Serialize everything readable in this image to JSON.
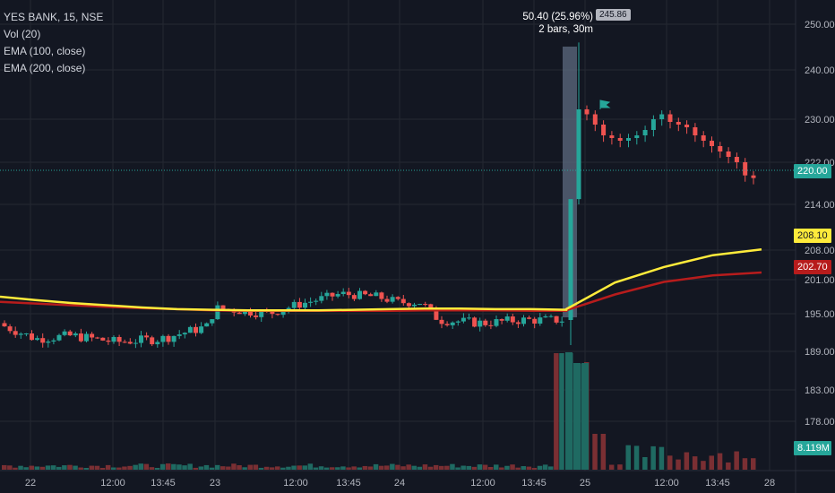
{
  "symbol": "YES BANK, 15, NSE",
  "legend": [
    "Vol (20)",
    "EMA (100, close)",
    "EMA (200, close)"
  ],
  "measure": {
    "change": "50.40 (25.96%)",
    "bars": "2 bars, 30m",
    "price": "245.86"
  },
  "price_labels": {
    "current": "220.00",
    "ema100": "208.10",
    "ema200": "202.70",
    "volume": "8.119M"
  },
  "colors": {
    "bg": "#131722",
    "up": "#26a69a",
    "down": "#ef5350",
    "ema100": "#ffeb3b",
    "ema200": "#b71c1c",
    "grid": "#242832",
    "text": "#b2b5be"
  },
  "chart_data": {
    "type": "candlestick",
    "ylim": [
      167,
      255
    ],
    "y_ticks": [
      178.0,
      183.0,
      189.0,
      195.0,
      201.0,
      208.0,
      214.0,
      222.0,
      230.0,
      240.0,
      250.0
    ],
    "x_ticks": [
      "22",
      "12:00",
      "13:45",
      "23",
      "12:00",
      "13:45",
      "24",
      "12:00",
      "13:45",
      "25",
      "12:00",
      "13:45",
      "28"
    ],
    "ema100": [
      198.0,
      197.4,
      196.9,
      196.5,
      196.1,
      195.8,
      195.7,
      195.6,
      195.6,
      195.6,
      195.7,
      195.8,
      195.9,
      195.9,
      195.8,
      195.8,
      195.7,
      195.8,
      200.5,
      204.0,
      206.8,
      208.1
    ],
    "ema200": [
      197.1,
      196.8,
      196.5,
      196.2,
      196.0,
      195.8,
      195.6,
      195.5,
      195.5,
      195.5,
      195.5,
      195.5,
      195.6,
      195.6,
      195.6,
      195.5,
      195.5,
      195.6,
      198.4,
      200.6,
      202.0,
      202.7
    ],
    "current_price": 220.0
  }
}
